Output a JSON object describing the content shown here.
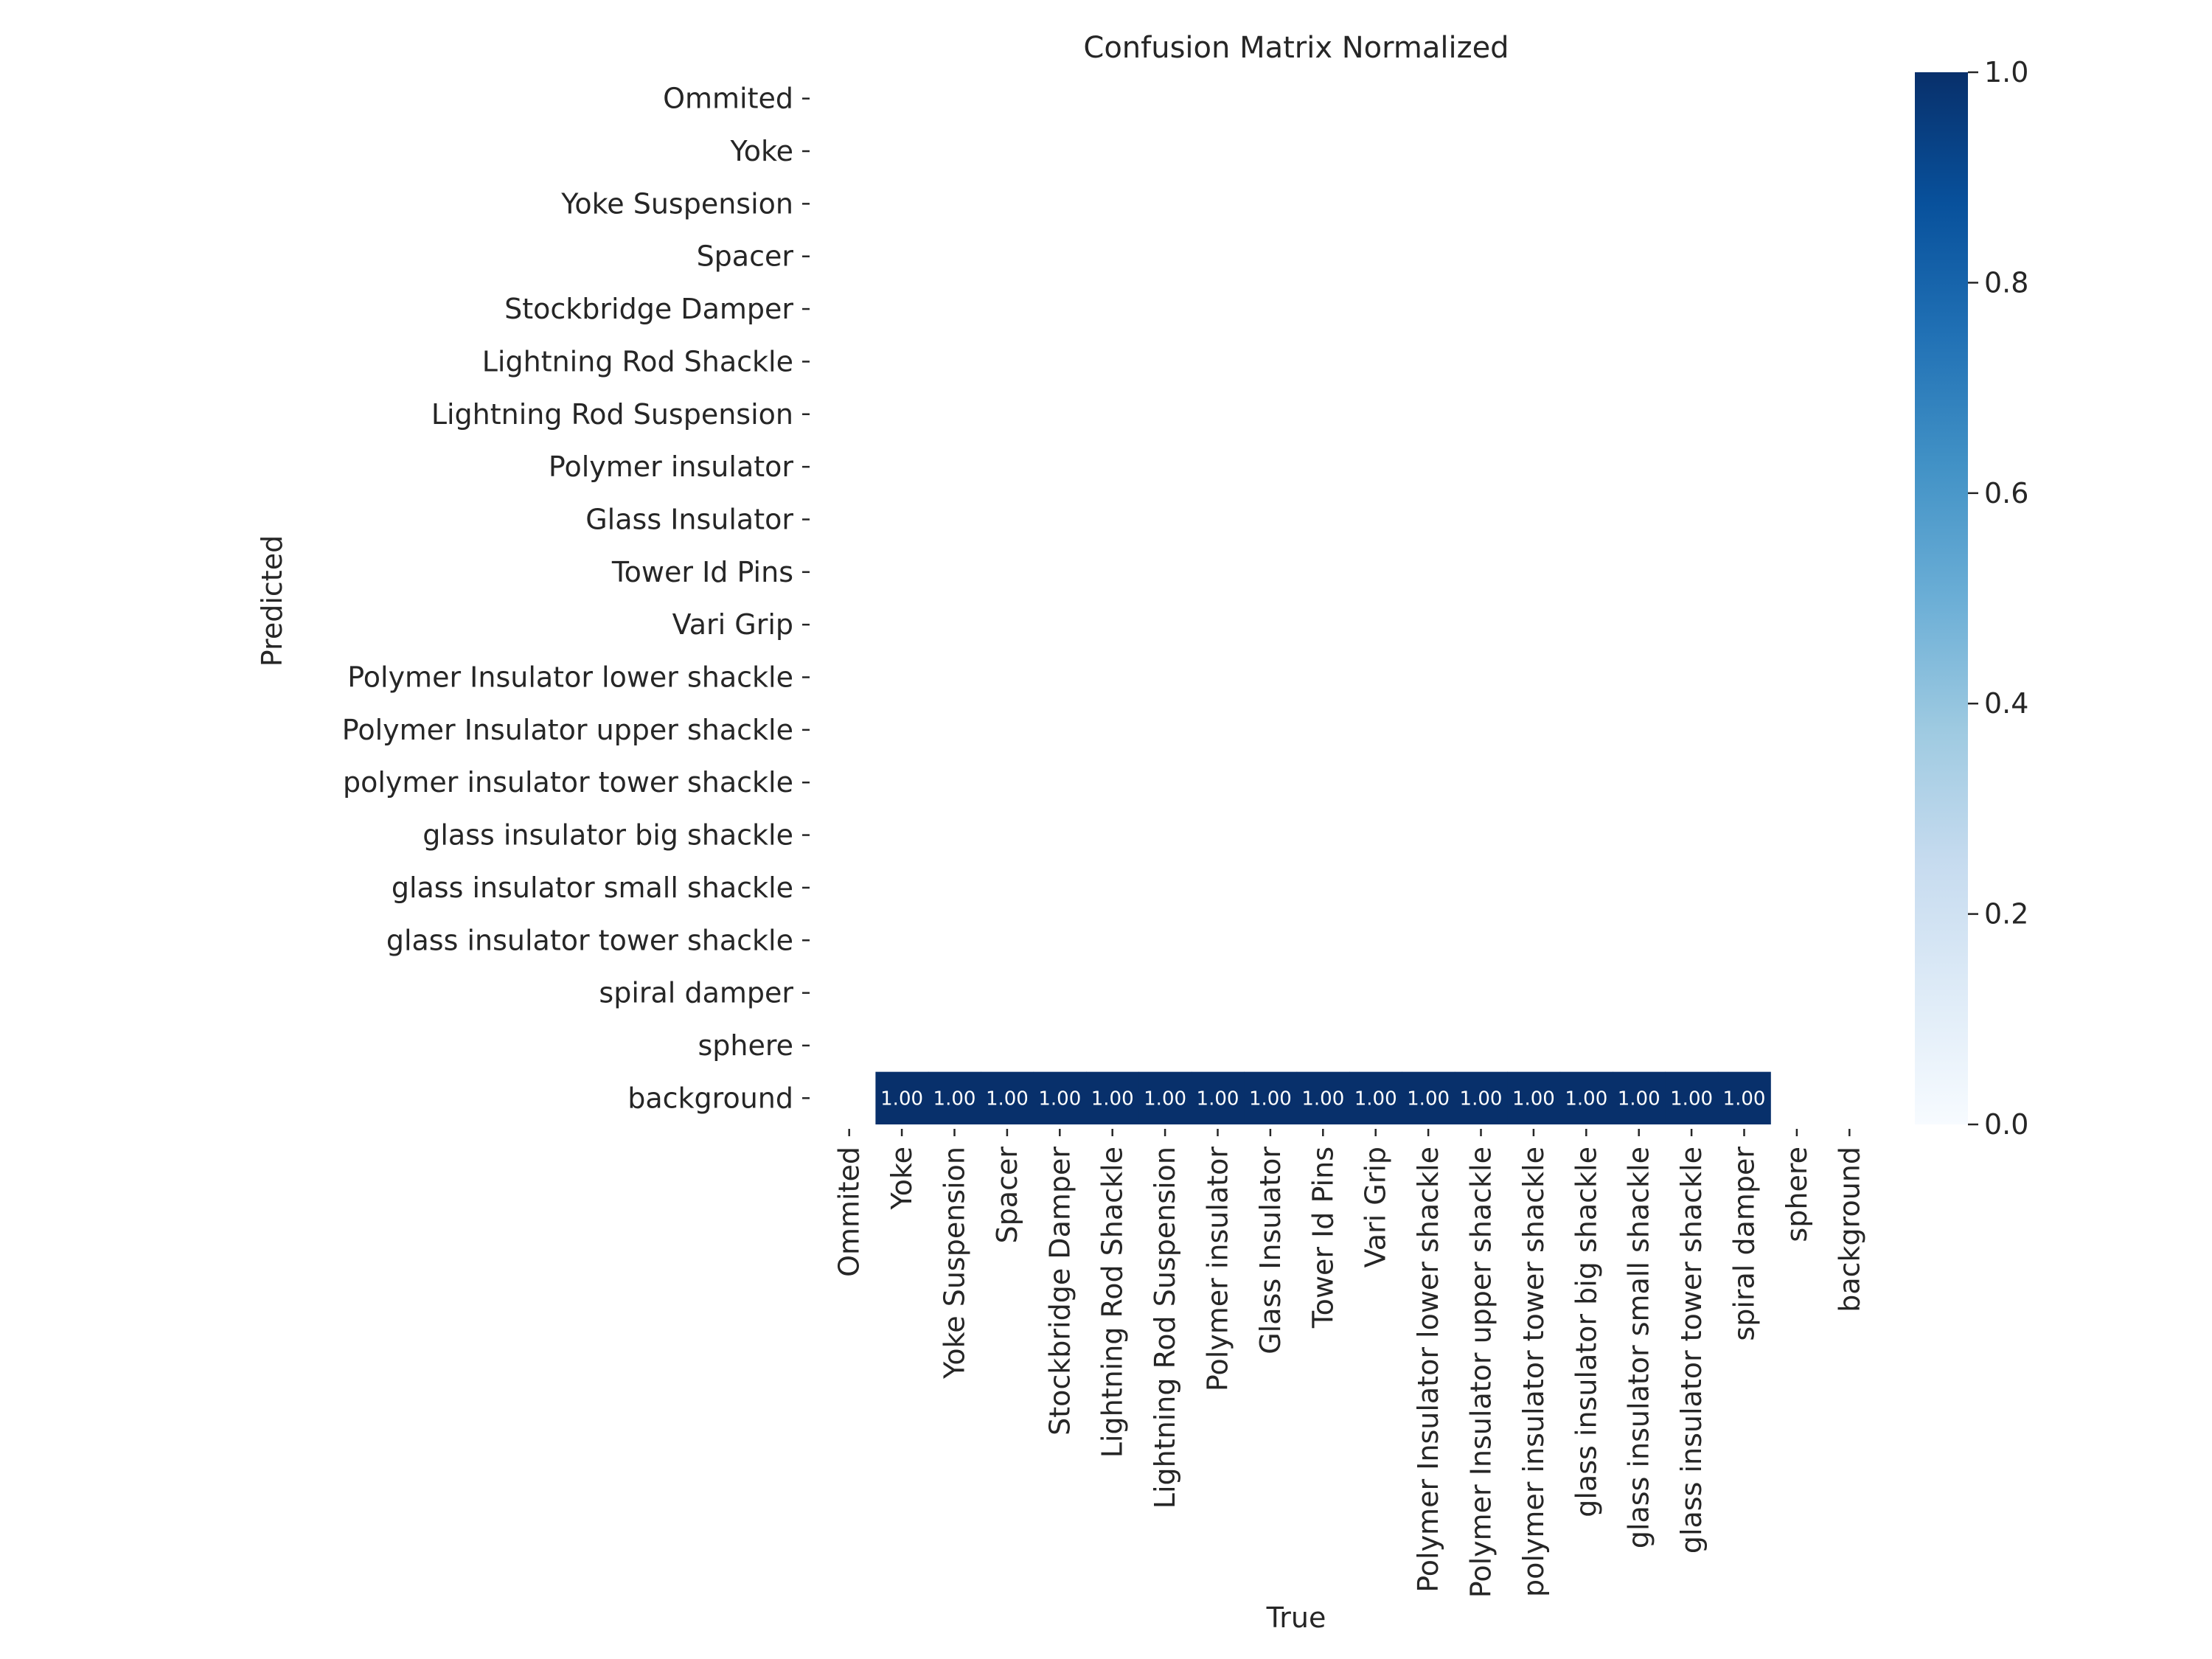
{
  "chart_data": {
    "type": "heatmap",
    "title": "Confusion Matrix Normalized",
    "xlabel": "True",
    "ylabel": "Predicted",
    "x_categories": [
      "Ommited",
      "Yoke",
      "Yoke Suspension",
      "Spacer",
      "Stockbridge Damper",
      "Lightning Rod Shackle",
      "Lightning Rod Suspension",
      "Polymer insulator",
      "Glass Insulator",
      "Tower Id Pins",
      "Vari Grip",
      "Polymer Insulator lower shackle",
      "Polymer Insulator upper shackle",
      "polymer insulator tower shackle",
      "glass insulator big shackle",
      "glass insulator small shackle",
      "glass insulator tower shackle",
      "spiral damper",
      "sphere",
      "background"
    ],
    "y_categories": [
      "Ommited",
      "Yoke",
      "Yoke Suspension",
      "Spacer",
      "Stockbridge Damper",
      "Lightning Rod Shackle",
      "Lightning Rod Suspension",
      "Polymer insulator",
      "Glass Insulator",
      "Tower Id Pins",
      "Vari Grip",
      "Polymer Insulator lower shackle",
      "Polymer Insulator upper shackle",
      "polymer insulator tower shackle",
      "glass insulator big shackle",
      "glass insulator small shackle",
      "glass insulator tower shackle",
      "spiral damper",
      "sphere",
      "background"
    ],
    "cells": [
      {
        "x": "Yoke",
        "y": "background",
        "value": 1.0,
        "label": "1.00"
      },
      {
        "x": "Yoke Suspension",
        "y": "background",
        "value": 1.0,
        "label": "1.00"
      },
      {
        "x": "Spacer",
        "y": "background",
        "value": 1.0,
        "label": "1.00"
      },
      {
        "x": "Stockbridge Damper",
        "y": "background",
        "value": 1.0,
        "label": "1.00"
      },
      {
        "x": "Lightning Rod Shackle",
        "y": "background",
        "value": 1.0,
        "label": "1.00"
      },
      {
        "x": "Lightning Rod Suspension",
        "y": "background",
        "value": 1.0,
        "label": "1.00"
      },
      {
        "x": "Polymer insulator",
        "y": "background",
        "value": 1.0,
        "label": "1.00"
      },
      {
        "x": "Glass Insulator",
        "y": "background",
        "value": 1.0,
        "label": "1.00"
      },
      {
        "x": "Tower Id Pins",
        "y": "background",
        "value": 1.0,
        "label": "1.00"
      },
      {
        "x": "Vari Grip",
        "y": "background",
        "value": 1.0,
        "label": "1.00"
      },
      {
        "x": "Polymer Insulator lower shackle",
        "y": "background",
        "value": 1.0,
        "label": "1.00"
      },
      {
        "x": "Polymer Insulator upper shackle",
        "y": "background",
        "value": 1.0,
        "label": "1.00"
      },
      {
        "x": "polymer insulator tower shackle",
        "y": "background",
        "value": 1.0,
        "label": "1.00"
      },
      {
        "x": "glass insulator big shackle",
        "y": "background",
        "value": 1.0,
        "label": "1.00"
      },
      {
        "x": "glass insulator small shackle",
        "y": "background",
        "value": 1.0,
        "label": "1.00"
      },
      {
        "x": "glass insulator tower shackle",
        "y": "background",
        "value": 1.0,
        "label": "1.00"
      },
      {
        "x": "spiral damper",
        "y": "background",
        "value": 1.0,
        "label": "1.00"
      }
    ],
    "empty_cells": "blank (not drawn)",
    "colormap": "Blues",
    "colorbar": {
      "range": [
        0.0,
        1.0
      ],
      "ticks": [
        0.0,
        0.2,
        0.4,
        0.6,
        0.8,
        1.0
      ],
      "tick_labels": [
        "0.0",
        "0.2",
        "0.4",
        "0.6",
        "0.8",
        "1.0"
      ]
    },
    "colors": {
      "max": "#08306b",
      "min": "#f7fbff",
      "cell_text": "#ffffff",
      "text": "#262626"
    },
    "grid": false,
    "legend": "colorbar on right"
  }
}
